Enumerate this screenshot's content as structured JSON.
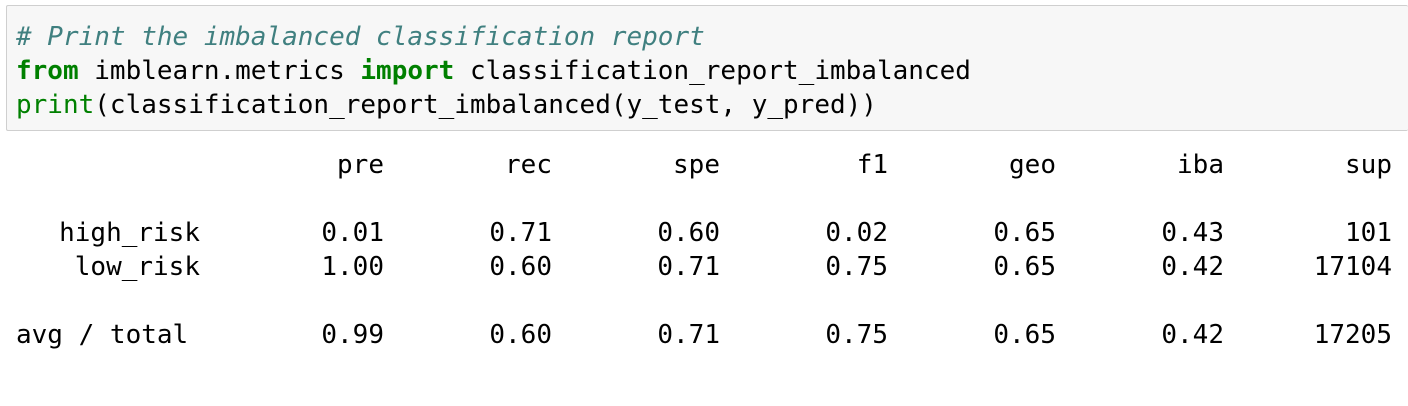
{
  "input_cell": {
    "lines": [
      {
        "tokens": [
          {
            "type": "comment",
            "text": "# Print the imbalanced classification report"
          }
        ]
      },
      {
        "tokens": [
          {
            "type": "keyword",
            "text": "from"
          },
          {
            "type": "plain",
            "text": " imblearn.metrics "
          },
          {
            "type": "keyword",
            "text": "import"
          },
          {
            "type": "plain",
            "text": " classification_report_imbalanced"
          }
        ]
      },
      {
        "tokens": [
          {
            "type": "builtin",
            "text": "print"
          },
          {
            "type": "plain",
            "text": "(classification_report_imbalanced(y_test, y_pred))"
          }
        ]
      }
    ]
  },
  "output_cell": {
    "columns": [
      "pre",
      "rec",
      "spe",
      "f1",
      "geo",
      "iba",
      "sup"
    ],
    "rows": [
      {
        "label": "high_risk",
        "values": [
          "0.01",
          "0.71",
          "0.60",
          "0.02",
          "0.65",
          "0.43",
          "101"
        ]
      },
      {
        "label": "low_risk",
        "values": [
          "1.00",
          "0.60",
          "0.71",
          "0.75",
          "0.65",
          "0.42",
          "17104"
        ]
      },
      {
        "label": "avg / total",
        "values": [
          "0.99",
          "0.60",
          "0.71",
          "0.75",
          "0.65",
          "0.42",
          "17205"
        ]
      }
    ]
  },
  "colors": {
    "comment": "#408080",
    "keyword": "#008000",
    "input_background": "#f7f7f7",
    "input_border": "#cfcfcf"
  }
}
